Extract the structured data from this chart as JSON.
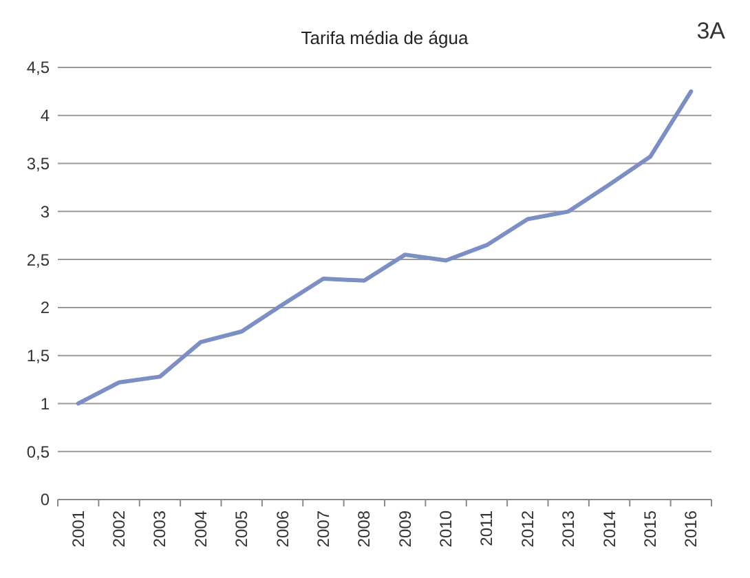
{
  "chart_data": {
    "type": "line",
    "title": "Tarifa média de água",
    "annotations": [
      "3A"
    ],
    "categories": [
      "2001",
      "2002",
      "2003",
      "2004",
      "2005",
      "2006",
      "2007",
      "2008",
      "2009",
      "2010",
      "2011",
      "2012",
      "2013",
      "2014",
      "2015",
      "2016"
    ],
    "series": [
      {
        "color": "#7b8fc4",
        "values": [
          1.0,
          1.22,
          1.28,
          1.64,
          1.75,
          2.03,
          2.3,
          2.28,
          2.55,
          2.49,
          2.65,
          2.92,
          3.0,
          3.28,
          3.57,
          4.25
        ]
      }
    ],
    "ylim": [
      0,
      4.5
    ],
    "yticks": [
      {
        "value": 0,
        "label": "0"
      },
      {
        "value": 0.5,
        "label": "0,5"
      },
      {
        "value": 1,
        "label": "1"
      },
      {
        "value": 1.5,
        "label": "1,5"
      },
      {
        "value": 2,
        "label": "2"
      },
      {
        "value": 2.5,
        "label": "2,5"
      },
      {
        "value": 3,
        "label": "3"
      },
      {
        "value": 3.5,
        "label": "3,5"
      },
      {
        "value": 4,
        "label": "4"
      },
      {
        "value": 4.5,
        "label": "4,5"
      }
    ],
    "grid": "y",
    "marker": "none",
    "line_style": "solid"
  }
}
